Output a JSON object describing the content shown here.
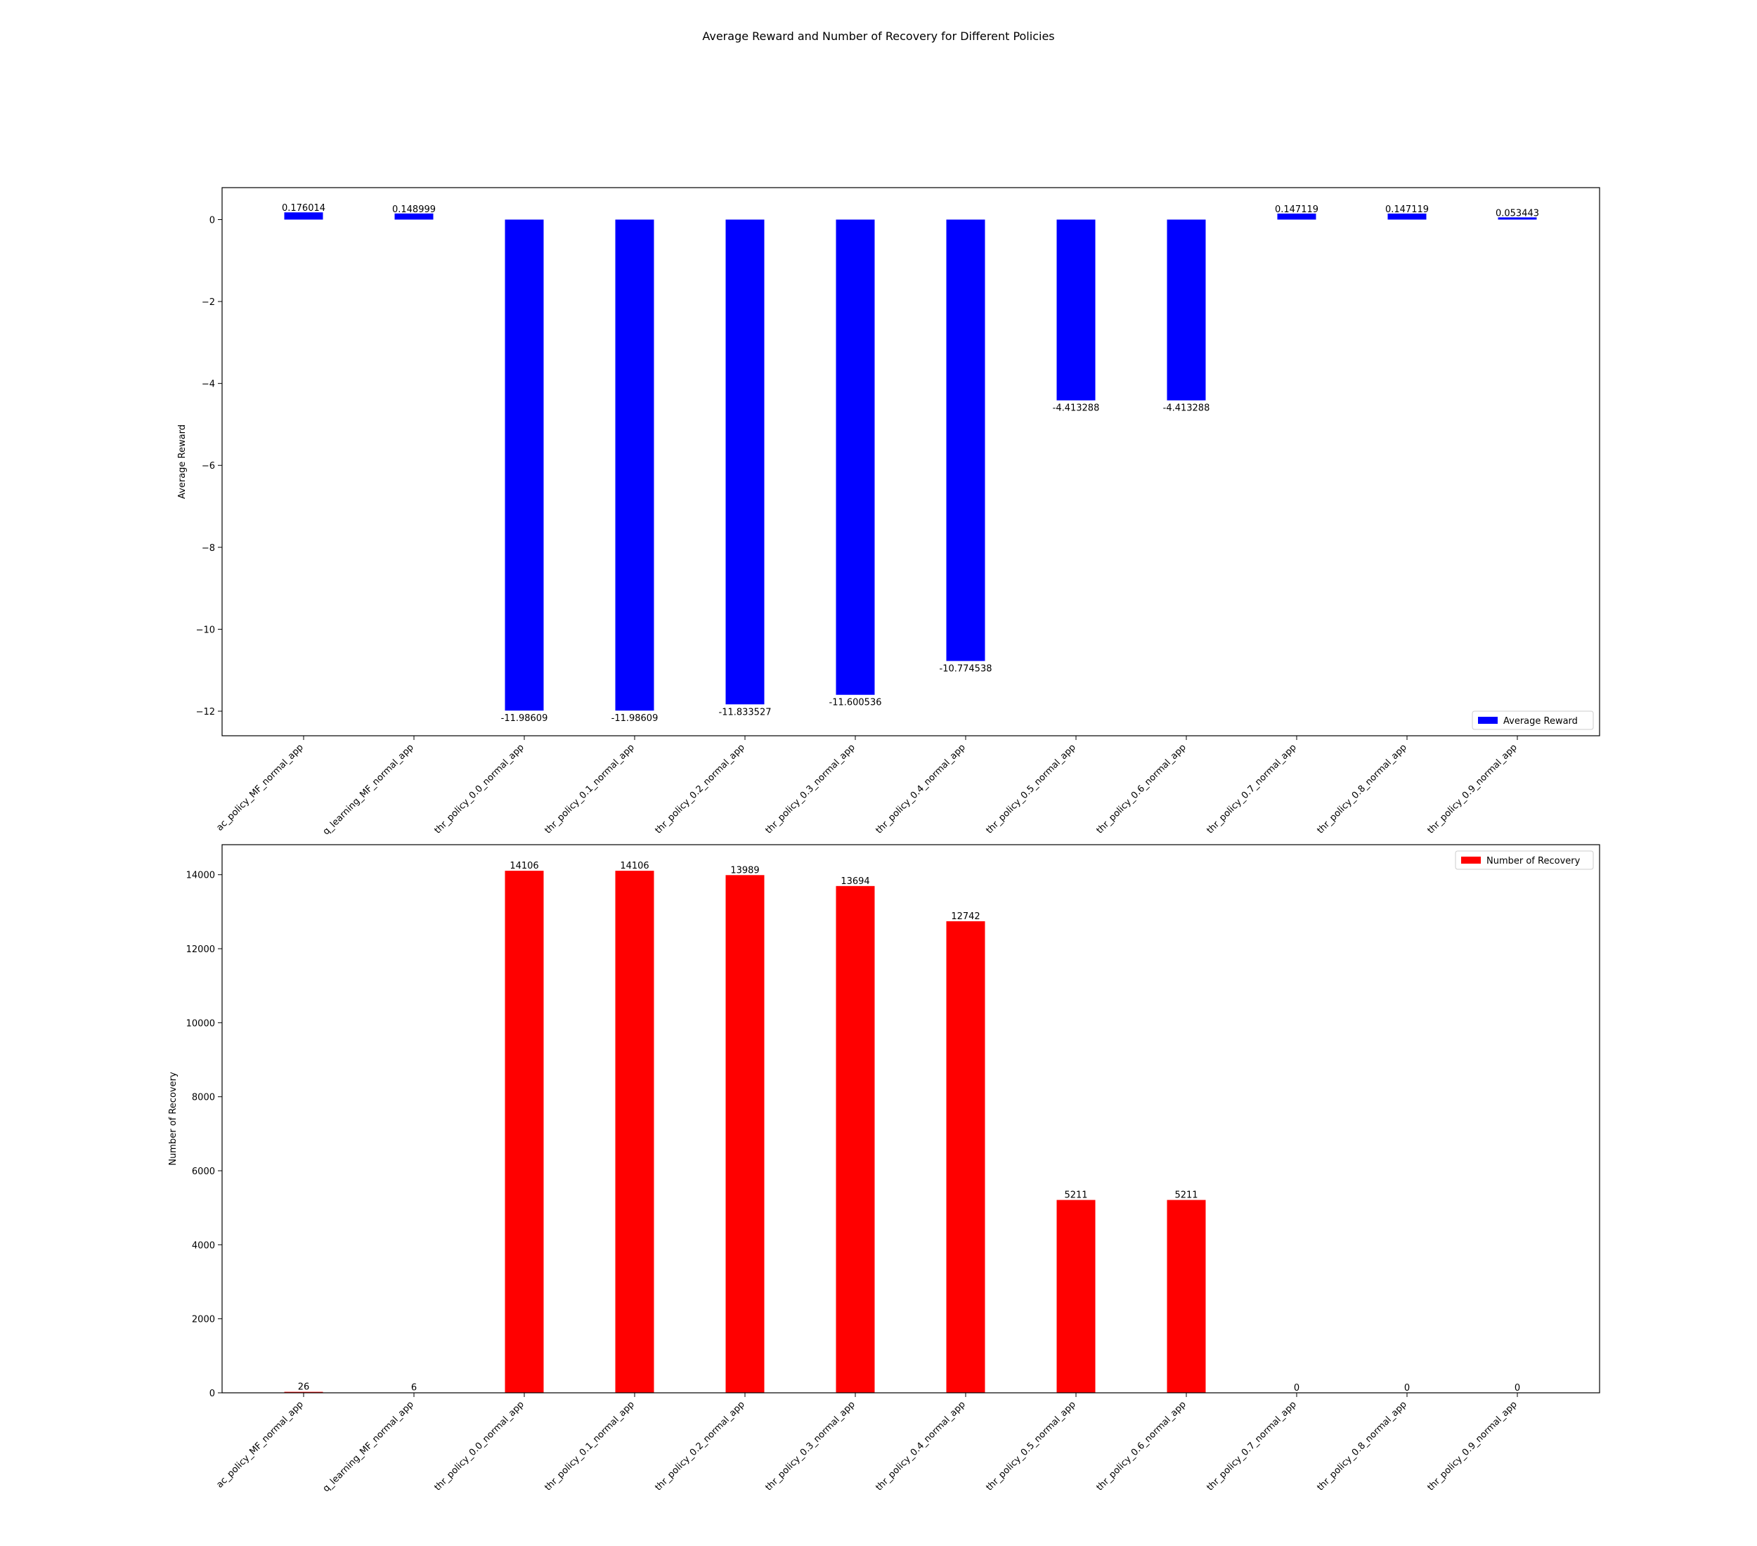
{
  "figure": {
    "title": "Average Reward and Number of Recovery for Different Policies"
  },
  "chart_data": [
    {
      "type": "bar",
      "categories": [
        "ac_policy_MF_normal_app",
        "q_learning_MF_normal_app",
        "thr_policy_0.0_normal_app",
        "thr_policy_0.1_normal_app",
        "thr_policy_0.2_normal_app",
        "thr_policy_0.3_normal_app",
        "thr_policy_0.4_normal_app",
        "thr_policy_0.5_normal_app",
        "thr_policy_0.6_normal_app",
        "thr_policy_0.7_normal_app",
        "thr_policy_0.8_normal_app",
        "thr_policy_0.9_normal_app"
      ],
      "series": [
        {
          "name": "Average Reward",
          "color": "#0000ff",
          "values": [
            0.176014,
            0.148999,
            -11.98609,
            -11.98609,
            -11.833527,
            -11.600536,
            -10.774538,
            -4.413288,
            -4.413288,
            0.147119,
            0.147119,
            0.053443
          ],
          "labels": [
            "0.176014",
            "0.148999",
            "-11.98609",
            "-11.98609",
            "-11.833527",
            "-11.600536",
            "-10.774538",
            "-4.413288",
            "-4.413288",
            "0.147119",
            "0.147119",
            "0.053443"
          ]
        }
      ],
      "ylabel": "Average Reward",
      "xlabel": "",
      "ylim": [
        -12.6,
        0.78
      ],
      "yticks": [
        0,
        -2,
        -4,
        -6,
        -8,
        -10,
        -12
      ],
      "ytick_labels": [
        "0",
        "−2",
        "−4",
        "−6",
        "−8",
        "−10",
        "−12"
      ],
      "legend": "bottom-right",
      "grid": false
    },
    {
      "type": "bar",
      "categories": [
        "ac_policy_MF_normal_app",
        "q_learning_MF_normal_app",
        "thr_policy_0.0_normal_app",
        "thr_policy_0.1_normal_app",
        "thr_policy_0.2_normal_app",
        "thr_policy_0.3_normal_app",
        "thr_policy_0.4_normal_app",
        "thr_policy_0.5_normal_app",
        "thr_policy_0.6_normal_app",
        "thr_policy_0.7_normal_app",
        "thr_policy_0.8_normal_app",
        "thr_policy_0.9_normal_app"
      ],
      "series": [
        {
          "name": "Number of Recovery",
          "color": "#ff0000",
          "values": [
            26,
            6,
            14106,
            14106,
            13989,
            13694,
            12742,
            5211,
            5211,
            0,
            0,
            0
          ],
          "labels": [
            "26",
            "6",
            "14106",
            "14106",
            "13989",
            "13694",
            "12742",
            "5211",
            "5211",
            "0",
            "0",
            "0"
          ]
        }
      ],
      "ylabel": "Number of Recovery",
      "xlabel": "",
      "ylim": [
        0,
        14811
      ],
      "yticks": [
        0,
        2000,
        4000,
        6000,
        8000,
        10000,
        12000,
        14000
      ],
      "ytick_labels": [
        "0",
        "2000",
        "4000",
        "6000",
        "8000",
        "10000",
        "12000",
        "14000"
      ],
      "legend": "top-right",
      "grid": false
    }
  ]
}
